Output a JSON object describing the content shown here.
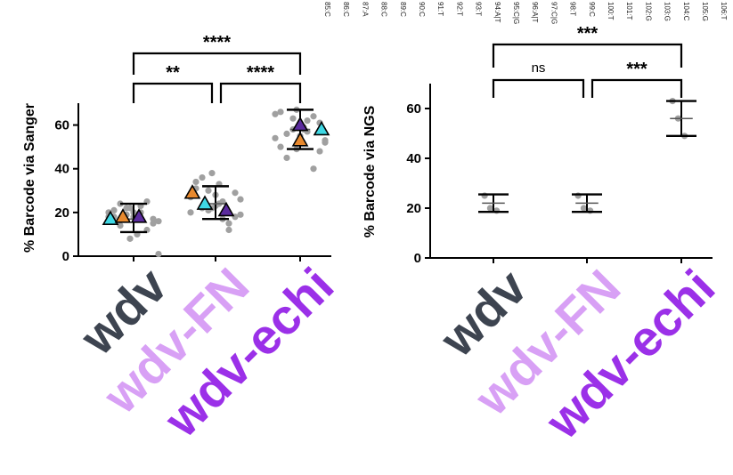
{
  "header_strip": [
    "85:C",
    "86:C",
    "87:A",
    "88:C",
    "89:C",
    "90:C",
    "91:T",
    "92:T",
    "93:T",
    "94:A|T",
    "95:C|G",
    "96:A|T",
    "97:C|G",
    "98:T",
    "99:C",
    "100:T",
    "101:T",
    "102:G",
    "103:G",
    "104:C",
    "105:G",
    "106:T"
  ],
  "colors": {
    "wdv": "#3d4450",
    "wdv-FN": "#d8a0f5",
    "wdv-echi": "#9b30e8",
    "dots": "#a0a0a0",
    "triangle_cyan": "#3fd8e4",
    "triangle_orange": "#e8892e",
    "triangle_purple": "#5b2b9e",
    "axis": "#000000"
  },
  "chart_data": [
    {
      "type": "scatter",
      "panel": "left",
      "ylabel": "% Barcode via Sanger",
      "xlabel": "",
      "ylim": [
        0,
        70
      ],
      "yticks": [
        0,
        20,
        40,
        60
      ],
      "categories": [
        "wdv",
        "wdv-FN",
        "wdv-echi"
      ],
      "points": [
        [
          18,
          22,
          20,
          15,
          24,
          18,
          12,
          20,
          16,
          22,
          10,
          21,
          19,
          23,
          17,
          14,
          20,
          25,
          18,
          1,
          8,
          19
        ],
        [
          34,
          30,
          25,
          18,
          22,
          28,
          15,
          20,
          26,
          38,
          24,
          31,
          21,
          17,
          29,
          36,
          23,
          12,
          27,
          19,
          22,
          33
        ],
        [
          66,
          58,
          62,
          48,
          56,
          60,
          64,
          54,
          52,
          67,
          59,
          50,
          63,
          57,
          61,
          45,
          55,
          40,
          65,
          53,
          49,
          58
        ]
      ],
      "means": [
        17,
        24,
        58
      ],
      "sd_upper": [
        24,
        32,
        67
      ],
      "sd_lower": [
        11,
        17,
        49
      ],
      "replicate_means": [
        [
          {
            "color": "triangle_cyan",
            "value": 17
          },
          {
            "color": "triangle_orange",
            "value": 18
          },
          {
            "color": "triangle_purple",
            "value": 18
          }
        ],
        [
          {
            "color": "triangle_orange",
            "value": 29
          },
          {
            "color": "triangle_cyan",
            "value": 24
          },
          {
            "color": "triangle_purple",
            "value": 21
          }
        ],
        [
          {
            "color": "triangle_purple",
            "value": 60
          },
          {
            "color": "triangle_orange",
            "value": 53
          },
          {
            "color": "triangle_cyan",
            "value": 58
          }
        ]
      ],
      "significance": [
        {
          "from": 0,
          "to": 2,
          "label": "****"
        },
        {
          "from": 0,
          "to": 1,
          "label": "**"
        },
        {
          "from": 1,
          "to": 2,
          "label": "****"
        }
      ]
    },
    {
      "type": "scatter",
      "panel": "right",
      "ylabel": "% Barcode via NGS",
      "xlabel": "",
      "ylim": [
        0,
        70
      ],
      "yticks": [
        0,
        20,
        40,
        60
      ],
      "categories": [
        "wdv",
        "wdv-FN",
        "wdv-echi"
      ],
      "points": [
        [
          25,
          20,
          19
        ],
        [
          25,
          20,
          19
        ],
        [
          63,
          56,
          49
        ]
      ],
      "means": [
        22,
        22,
        56
      ],
      "sd_upper": [
        25.5,
        25.5,
        63
      ],
      "sd_lower": [
        18.5,
        18.5,
        49
      ],
      "significance": [
        {
          "from": 0,
          "to": 2,
          "label": "***"
        },
        {
          "from": 0,
          "to": 1,
          "label": "ns"
        },
        {
          "from": 1,
          "to": 2,
          "label": "***"
        }
      ]
    }
  ]
}
